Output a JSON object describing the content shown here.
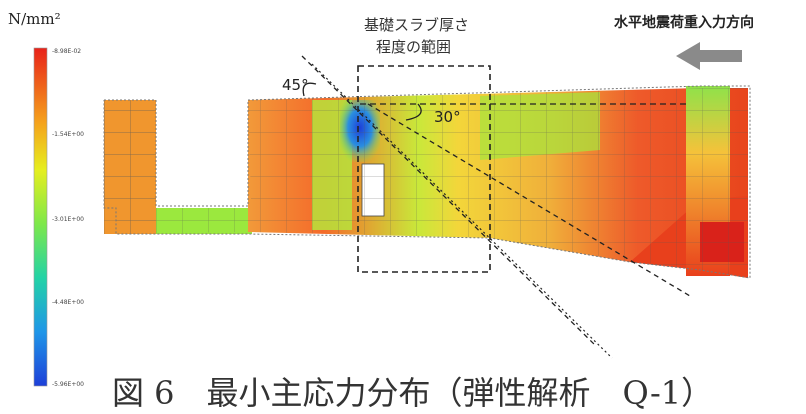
{
  "legend": {
    "unit": "N/mm²",
    "ticks": [
      "-8.98E-02",
      "-1.54E+00",
      "-3.01E+00",
      "-4.48E+00",
      "-5.96E+00"
    ],
    "gradient": [
      "#e8221a",
      "#f5a21c",
      "#e6ee1f",
      "#7ee84a",
      "#23d3a6",
      "#1f96e8",
      "#1d3fd8"
    ]
  },
  "direction_label": "水平地震荷重入力方向",
  "range_label": [
    "基礎スラブ厚さ",
    "程度の範囲"
  ],
  "angles": {
    "a45": "45°",
    "a30": "30°"
  },
  "caption": "図 6　最小主応力分布（弾性解析　Q-1）",
  "colors": {
    "arrow": "#8a8a8a",
    "mesh": "#777777"
  }
}
